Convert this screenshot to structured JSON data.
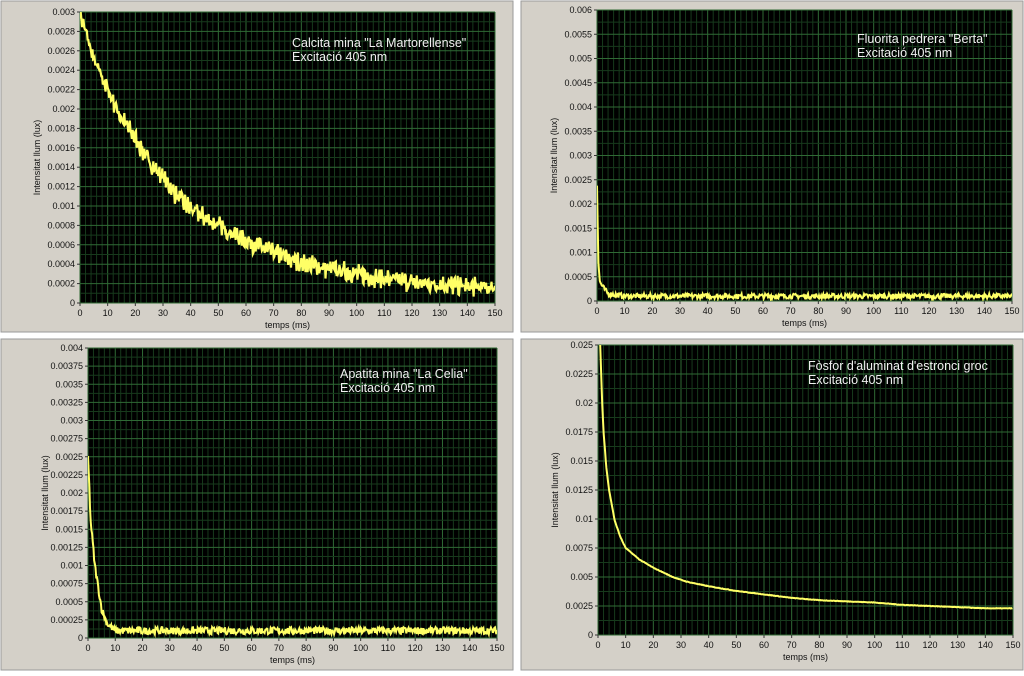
{
  "colors": {
    "panel": "#d4d0c8",
    "plot_bg": "#000000",
    "grid_major": "#2f6a35",
    "grid_minor": "#173a1c",
    "trace": "#ffff66"
  },
  "chart_data": [
    {
      "type": "line",
      "annotation": [
        "Calcita mina \"La Martorellense\"",
        "Excitació 405 nm"
      ],
      "xlabel": "temps (ms)",
      "ylabel": "Intensitat llum (lux)",
      "xlim": [
        0,
        150
      ],
      "ylim": [
        0,
        0.003
      ],
      "xticks": [
        0,
        10,
        20,
        30,
        40,
        50,
        60,
        70,
        80,
        90,
        100,
        110,
        120,
        130,
        140,
        150
      ],
      "yticks": [
        0,
        0.0002,
        0.0004,
        0.0006,
        0.0008,
        0.001,
        0.0012,
        0.0014,
        0.0016,
        0.0018,
        0.002,
        0.0022,
        0.0024,
        0.0026,
        0.0028,
        0.003
      ],
      "grid": true,
      "x": [
        0,
        5,
        10,
        15,
        20,
        25,
        30,
        35,
        40,
        45,
        50,
        55,
        60,
        65,
        70,
        75,
        80,
        85,
        90,
        95,
        100,
        105,
        110,
        115,
        120,
        125,
        130,
        135,
        140,
        145,
        150
      ],
      "y": [
        0.003,
        0.0025,
        0.0022,
        0.0019,
        0.0017,
        0.00145,
        0.0013,
        0.0011,
        0.00097,
        0.00088,
        0.0008,
        0.00072,
        0.00065,
        0.00058,
        0.00052,
        0.00046,
        0.00041,
        0.00038,
        0.00035,
        0.00033,
        0.0003,
        0.00027,
        0.00025,
        0.00023,
        0.00021,
        0.0002,
        0.00019,
        0.00018,
        0.00017,
        0.00016,
        0.00016
      ]
    },
    {
      "type": "line",
      "annotation": [
        "Fluorita pedrera \"Berta\"",
        "Excitació 405 nm"
      ],
      "xlabel": "temps (ms)",
      "ylabel": "Intensitat llum (lux)",
      "xlim": [
        0,
        150
      ],
      "ylim": [
        0,
        0.006
      ],
      "xticks": [
        0,
        10,
        20,
        30,
        40,
        50,
        60,
        70,
        80,
        90,
        100,
        110,
        120,
        130,
        140,
        150
      ],
      "yticks": [
        0,
        0.0005,
        0.001,
        0.0015,
        0.002,
        0.0025,
        0.003,
        0.0035,
        0.004,
        0.0045,
        0.005,
        0.0055,
        0.006
      ],
      "grid": true,
      "x": [
        0,
        0.5,
        1,
        2,
        4,
        10,
        150
      ],
      "y": [
        0.0024,
        0.0008,
        0.0004,
        0.0003,
        0.00015,
        0.0001,
        0.0001
      ]
    },
    {
      "type": "line",
      "annotation": [
        "Apatita mina \"La Celia\"",
        "Excitació 405 nm"
      ],
      "xlabel": "temps (ms)",
      "ylabel": "Intensitat llum (lux)",
      "xlim": [
        0,
        150
      ],
      "ylim": [
        0,
        0.004
      ],
      "xticks": [
        0,
        10,
        20,
        30,
        40,
        50,
        60,
        70,
        80,
        90,
        100,
        110,
        120,
        130,
        140,
        150
      ],
      "yticks": [
        0,
        0.00025,
        0.0005,
        0.00075,
        0.001,
        0.00125,
        0.0015,
        0.00175,
        0.002,
        0.00225,
        0.0025,
        0.00275,
        0.003,
        0.00325,
        0.0035,
        0.00375,
        0.004
      ],
      "grid": true,
      "x": [
        0,
        1,
        2.5,
        5,
        7,
        10,
        150
      ],
      "y": [
        0.0025,
        0.0016,
        0.001,
        0.0004,
        0.0002,
        0.0001,
        0.0001
      ]
    },
    {
      "type": "line",
      "annotation": [
        "Fòsfor d'aluminat d'estronci groc",
        "Excitació 405 nm"
      ],
      "xlabel": "temps (ms)",
      "ylabel": "Intensitat llum (lux)",
      "xlim": [
        0,
        150
      ],
      "ylim": [
        0,
        0.025
      ],
      "xticks": [
        0,
        10,
        20,
        30,
        40,
        50,
        60,
        70,
        80,
        90,
        100,
        110,
        120,
        130,
        140,
        150
      ],
      "yticks": [
        0,
        0.0025,
        0.005,
        0.0075,
        0.01,
        0.0125,
        0.015,
        0.0175,
        0.02,
        0.0225,
        0.025
      ],
      "grid": true,
      "x": [
        0.8,
        1.5,
        2,
        3,
        4,
        6,
        8,
        10,
        15,
        20,
        27,
        32,
        40,
        50,
        60,
        70,
        80,
        90,
        100,
        110,
        120,
        130,
        140,
        150
      ],
      "y": [
        0.025,
        0.02,
        0.0175,
        0.0145,
        0.0125,
        0.0099,
        0.0085,
        0.0075,
        0.0065,
        0.0058,
        0.005,
        0.0046,
        0.0042,
        0.0038,
        0.0035,
        0.0032,
        0.003,
        0.0029,
        0.0028,
        0.0026,
        0.0025,
        0.0024,
        0.0023,
        0.0023
      ]
    }
  ]
}
